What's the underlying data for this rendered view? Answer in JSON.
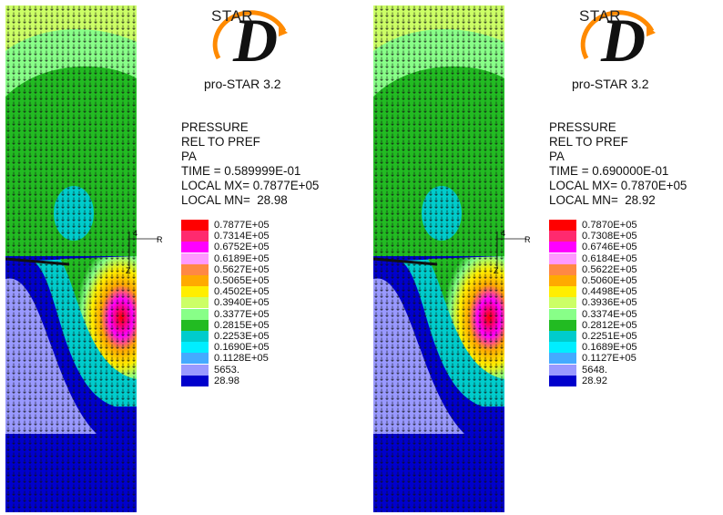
{
  "panels": [
    {
      "logo": {
        "star": "STAR",
        "letter": "D",
        "version": "pro-STAR 3.2"
      },
      "info": {
        "line1": "PRESSURE",
        "line2": "REL TO PREF",
        "line3": "PA",
        "line4": "TIME = 0.589999E-01",
        "line5": "LOCAL MX= 0.7877E+05",
        "line6": "LOCAL MN=  28.98"
      },
      "legend": [
        "0.7877E+05",
        "0.7314E+05",
        "0.6752E+05",
        "0.6189E+05",
        "0.5627E+05",
        "0.5065E+05",
        "0.4502E+05",
        "0.3940E+05",
        "0.3377E+05",
        "0.2815E+05",
        "0.2253E+05",
        "0.1690E+05",
        "0.1128E+05",
        "5653.",
        "28.98"
      ],
      "axis": {
        "r": "R",
        "four": "4",
        "z": "Z"
      }
    },
    {
      "logo": {
        "star": "STAR",
        "letter": "D",
        "version": "pro-STAR 3.2"
      },
      "info": {
        "line1": "PRESSURE",
        "line2": "REL TO PREF",
        "line3": "PA",
        "line4": "TIME = 0.690000E-01",
        "line5": "LOCAL MX= 0.7870E+05",
        "line6": "LOCAL MN=  28.92"
      },
      "legend": [
        "0.7870E+05",
        "0.7308E+05",
        "0.6746E+05",
        "0.6184E+05",
        "0.5622E+05",
        "0.5060E+05",
        "0.4498E+05",
        "0.3936E+05",
        "0.3374E+05",
        "0.2812E+05",
        "0.2251E+05",
        "0.1689E+05",
        "0.1127E+05",
        "5648.",
        "28.92"
      ],
      "axis": {
        "r": "R",
        "four": "4",
        "z": "Z"
      }
    }
  ],
  "colors": {
    "scale": [
      "#ff0000",
      "#ff2a6e",
      "#ff00ff",
      "#ff99ff",
      "#ff8844",
      "#ffaa00",
      "#ffee00",
      "#ccff66",
      "#88ff88",
      "#22bb22",
      "#00cccc",
      "#00eeff",
      "#44aaff",
      "#9999ff",
      "#0000cc"
    ],
    "logo_orange": "#ff8a00"
  }
}
